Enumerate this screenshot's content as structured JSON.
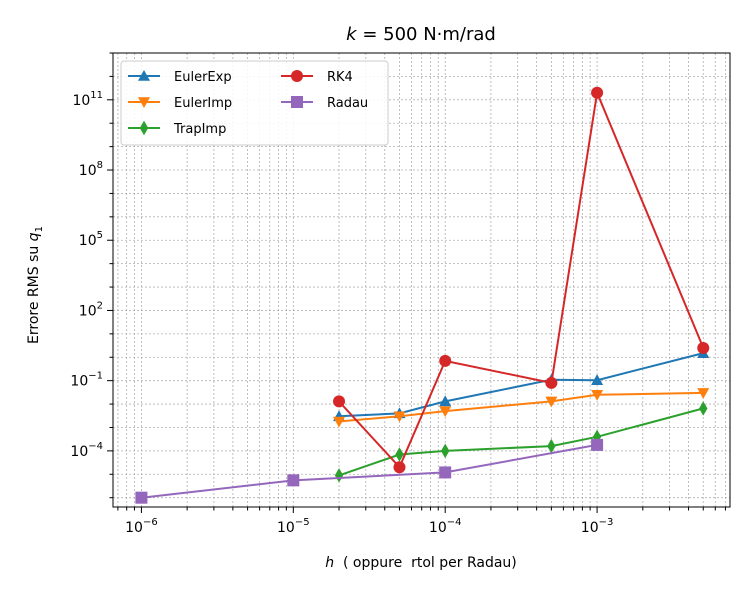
{
  "chart_data": {
    "type": "line",
    "title_prefix": "k",
    "title_suffix": " = 500 N·m/rad",
    "xlabel_var": "h",
    "xlabel_rest": "  ( oppure  rtol per Radau)",
    "ylabel_main": "Errore RMS su ",
    "ylabel_var": "q",
    "ylabel_sub": "1",
    "xscale": "log",
    "yscale": "log",
    "xlim": [
      6.5e-07,
      0.0075
    ],
    "ylim": [
      4e-07,
      10000000000000.0
    ],
    "x_ticks": [
      {
        "value": 1e-06,
        "base": "10",
        "exp": "−6"
      },
      {
        "value": 1e-05,
        "base": "10",
        "exp": "−5"
      },
      {
        "value": 0.0001,
        "base": "10",
        "exp": "−4"
      },
      {
        "value": 0.001,
        "base": "10",
        "exp": "−3"
      }
    ],
    "y_ticks": [
      {
        "value": 0.0001,
        "base": "10",
        "exp": "−4"
      },
      {
        "value": 0.1,
        "base": "10",
        "exp": "−1"
      },
      {
        "value": 100.0,
        "base": "10",
        "exp": "2"
      },
      {
        "value": 100000.0,
        "base": "10",
        "exp": "5"
      },
      {
        "value": 100000000.0,
        "base": "10",
        "exp": "8"
      },
      {
        "value": 100000000000.0,
        "base": "10",
        "exp": "11"
      }
    ],
    "grid": true,
    "legend_position": "upper-left",
    "series": [
      {
        "name": "EulerExp",
        "color": "#1f77b4",
        "marker": "triangle-up",
        "x": [
          2e-05,
          5e-05,
          0.0001,
          0.0005,
          0.001,
          0.005
        ],
        "y": [
          0.003,
          0.004,
          0.013,
          0.11,
          0.105,
          1.5
        ]
      },
      {
        "name": "EulerImp",
        "color": "#ff7f0e",
        "marker": "triangle-down",
        "x": [
          2e-05,
          5e-05,
          0.0001,
          0.0005,
          0.001,
          0.005
        ],
        "y": [
          0.0018,
          0.003,
          0.005,
          0.013,
          0.025,
          0.03
        ]
      },
      {
        "name": "TrapImp",
        "color": "#2ca02c",
        "marker": "diamond",
        "x": [
          2e-05,
          5e-05,
          0.0001,
          0.0005,
          0.001,
          0.005
        ],
        "y": [
          9e-06,
          7e-05,
          0.0001,
          0.00016,
          0.0004,
          0.0065
        ]
      },
      {
        "name": "RK4",
        "color": "#d62728",
        "marker": "circle",
        "x": [
          2e-05,
          5e-05,
          0.0001,
          0.0005,
          0.001,
          0.005
        ],
        "y": [
          0.013,
          2e-05,
          0.7,
          0.08,
          200000000000.0,
          2.5
        ]
      },
      {
        "name": "Radau",
        "color": "#9467bd",
        "marker": "square",
        "x": [
          1e-06,
          1e-05,
          0.0001,
          0.001
        ],
        "y": [
          1e-06,
          5.5e-06,
          1.2e-05,
          0.00018
        ]
      }
    ]
  }
}
